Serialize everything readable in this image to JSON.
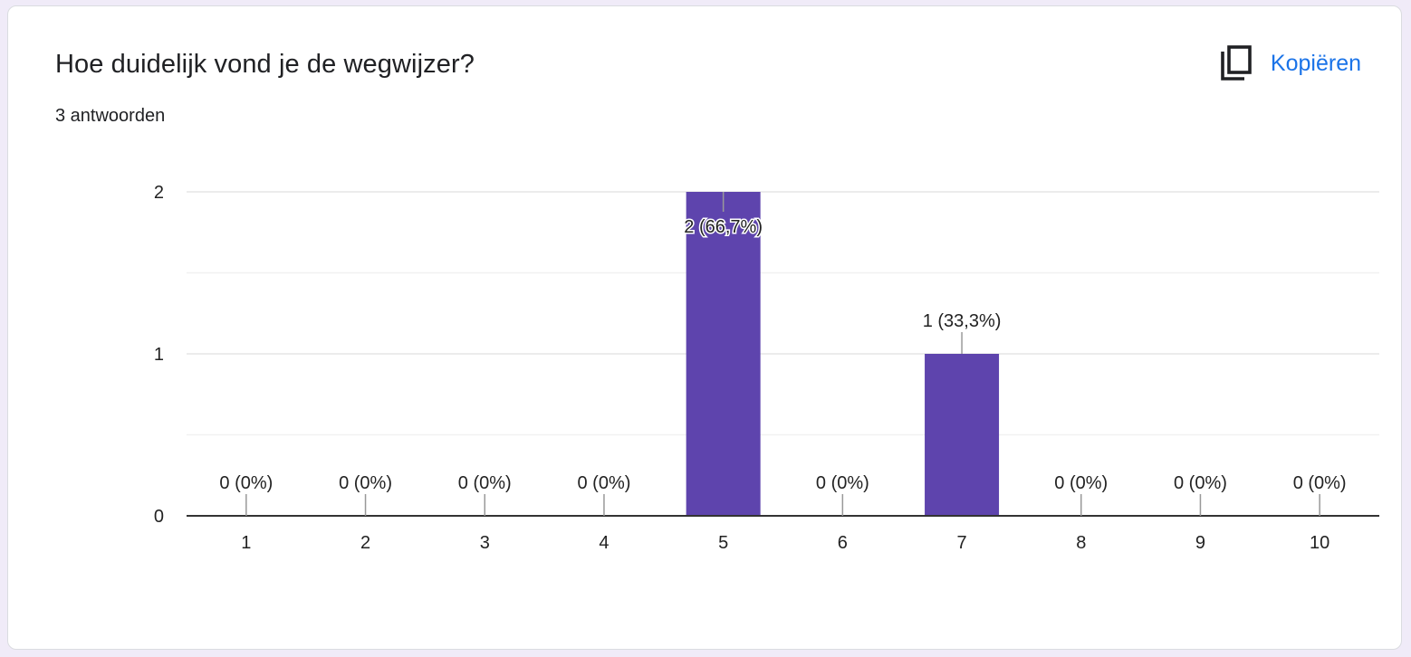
{
  "question": {
    "title": "Hoe duidelijk vond je de wegwijzer?",
    "responses_label": "3 antwoorden"
  },
  "toolbar": {
    "copy_label": "Kopiëren",
    "copy_icon": "copy-icon"
  },
  "colors": {
    "bar": "#5e44ad",
    "link": "#1a73e8",
    "background": "#f0ebf8"
  },
  "chart_data": {
    "type": "bar",
    "categories": [
      "1",
      "2",
      "3",
      "4",
      "5",
      "6",
      "7",
      "8",
      "9",
      "10"
    ],
    "values": [
      0,
      0,
      0,
      0,
      2,
      0,
      1,
      0,
      0,
      0
    ],
    "data_labels": [
      "0 (0%)",
      "0 (0%)",
      "0 (0%)",
      "0 (0%)",
      "2 (66,7%)",
      "0 (0%)",
      "1 (33,3%)",
      "0 (0%)",
      "0 (0%)",
      "0 (0%)"
    ],
    "yticks": [
      "0",
      "1",
      "2"
    ],
    "ylim": [
      0,
      2
    ],
    "grid": true,
    "legend": "none"
  }
}
